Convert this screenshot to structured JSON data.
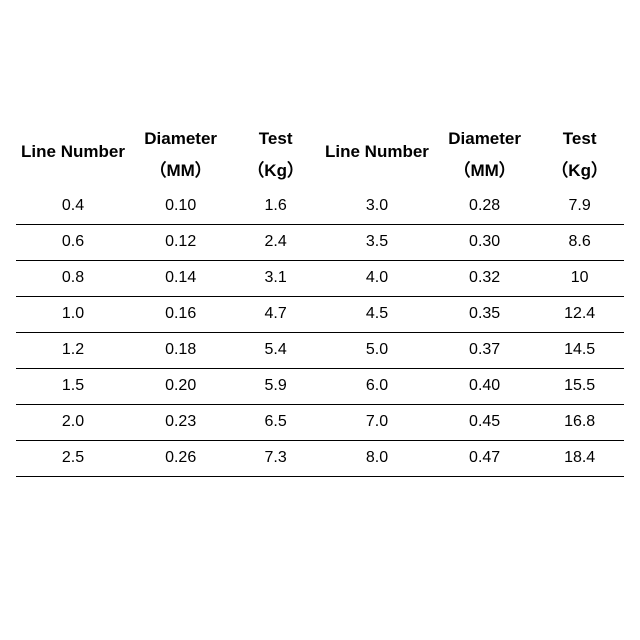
{
  "table": {
    "type": "table",
    "background_color": "#ffffff",
    "text_color": "#000000",
    "border_color": "#000000",
    "header_fontsize": 17,
    "cell_fontsize": 16,
    "columns": [
      {
        "label_top": "Line Number",
        "label_bottom": ""
      },
      {
        "label_top": "Diameter",
        "label_bottom": "（MM）"
      },
      {
        "label_top": "Test",
        "label_bottom": "（Kg）"
      },
      {
        "label_top": "Line Number",
        "label_bottom": ""
      },
      {
        "label_top": "Diameter",
        "label_bottom": "（MM）"
      },
      {
        "label_top": "Test",
        "label_bottom": "（Kg）"
      }
    ],
    "rows": [
      [
        "0.4",
        "0.10",
        "1.6",
        "3.0",
        "0.28",
        "7.9"
      ],
      [
        "0.6",
        "0.12",
        "2.4",
        "3.5",
        "0.30",
        "8.6"
      ],
      [
        "0.8",
        "0.14",
        "3.1",
        "4.0",
        "0.32",
        "10"
      ],
      [
        "1.0",
        "0.16",
        "4.7",
        "4.5",
        "0.35",
        "12.4"
      ],
      [
        "1.2",
        "0.18",
        "5.4",
        "5.0",
        "0.37",
        "14.5"
      ],
      [
        "1.5",
        "0.20",
        "5.9",
        "6.0",
        "0.40",
        "15.5"
      ],
      [
        "2.0",
        "0.23",
        "6.5",
        "7.0",
        "0.45",
        "16.8"
      ],
      [
        "2.5",
        "0.26",
        "7.3",
        "8.0",
        "0.47",
        "18.4"
      ]
    ]
  }
}
